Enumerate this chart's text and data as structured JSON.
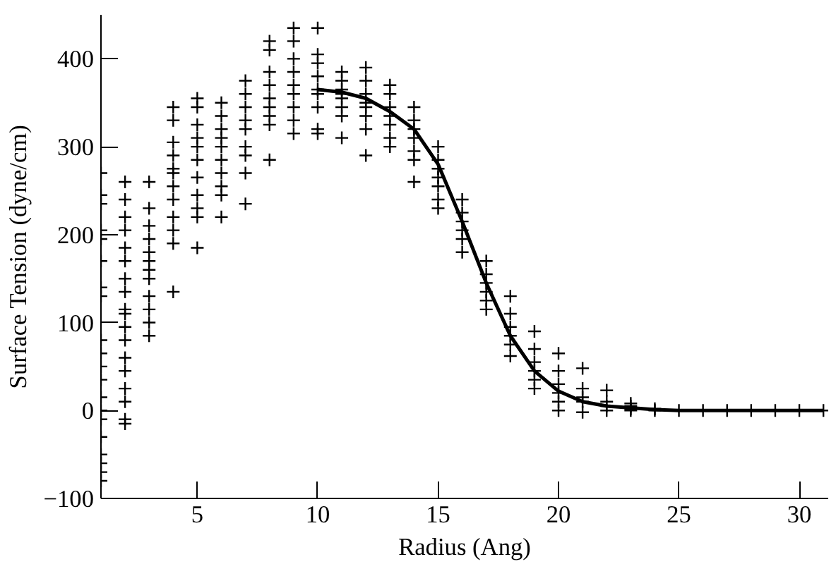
{
  "chart_data": {
    "type": "scatter",
    "xlabel": "Radius (Ang)",
    "ylabel": "Surface Tension (dyne/cm)",
    "xlim": [
      1,
      31.2
    ],
    "ylim": [
      -100,
      450
    ],
    "xticks": [
      5,
      10,
      15,
      20,
      25,
      30
    ],
    "yticks": [
      -100,
      0,
      100,
      200,
      300,
      400
    ],
    "grid": false,
    "series": [
      {
        "color": "#000000",
        "marker": "cross",
        "x": [
          1,
          1,
          1,
          1,
          1,
          1,
          1,
          1,
          1,
          1,
          1,
          1,
          1,
          1,
          1,
          1,
          1,
          1,
          1,
          1,
          2,
          2,
          2,
          2,
          2,
          2,
          2,
          2,
          2,
          2,
          2,
          2,
          2,
          2,
          2,
          2,
          2,
          2,
          3,
          3,
          3,
          3,
          3,
          3,
          3,
          3,
          3,
          3,
          3,
          3,
          4,
          4,
          4,
          4,
          4,
          4,
          4,
          4,
          4,
          4,
          4,
          4,
          5,
          5,
          5,
          5,
          5,
          5,
          5,
          5,
          5,
          5,
          5,
          6,
          6,
          6,
          6,
          6,
          6,
          6,
          6,
          6,
          6,
          7,
          7,
          7,
          7,
          7,
          7,
          7,
          7,
          7,
          8,
          8,
          8,
          8,
          8,
          8,
          8,
          8,
          8,
          9,
          9,
          9,
          9,
          9,
          9,
          9,
          9,
          9,
          10,
          10,
          10,
          10,
          10,
          10,
          10,
          10,
          10,
          11,
          11,
          11,
          11,
          11,
          11,
          11,
          11,
          12,
          12,
          12,
          12,
          12,
          12,
          12,
          12,
          13,
          13,
          13,
          13,
          13,
          13,
          13,
          14,
          14,
          14,
          14,
          14,
          14,
          14,
          15,
          15,
          15,
          15,
          15,
          15,
          15,
          16,
          16,
          16,
          16,
          16,
          16,
          17,
          17,
          17,
          17,
          17,
          17,
          18,
          18,
          18,
          18,
          18,
          18,
          19,
          19,
          19,
          19,
          19,
          19,
          20,
          20,
          20,
          20,
          20,
          20,
          21,
          21,
          21,
          21,
          21,
          22,
          22,
          22,
          22,
          23,
          23,
          23,
          23,
          24,
          24,
          25,
          26,
          27,
          28,
          29,
          30,
          31
        ],
        "values": [
          270,
          245,
          235,
          205,
          195,
          170,
          140,
          130,
          80,
          65,
          50,
          35,
          15,
          0,
          -10,
          -30,
          -50,
          -60,
          -70,
          -80,
          260,
          240,
          220,
          205,
          185,
          170,
          150,
          135,
          115,
          110,
          95,
          80,
          60,
          45,
          25,
          10,
          -10,
          -15,
          260,
          230,
          210,
          195,
          180,
          170,
          160,
          150,
          130,
          115,
          100,
          85,
          345,
          330,
          305,
          290,
          275,
          270,
          255,
          240,
          220,
          205,
          190,
          135,
          355,
          345,
          325,
          310,
          300,
          285,
          265,
          245,
          230,
          220,
          185,
          350,
          335,
          320,
          310,
          300,
          285,
          270,
          255,
          245,
          220,
          375,
          360,
          345,
          330,
          320,
          300,
          290,
          270,
          235,
          420,
          410,
          385,
          370,
          355,
          345,
          335,
          325,
          285,
          435,
          420,
          400,
          385,
          370,
          360,
          345,
          330,
          315,
          435,
          405,
          395,
          380,
          365,
          360,
          345,
          320,
          315,
          385,
          375,
          365,
          360,
          355,
          345,
          335,
          310,
          390,
          375,
          360,
          350,
          345,
          335,
          320,
          290,
          370,
          360,
          345,
          335,
          325,
          310,
          300,
          345,
          330,
          320,
          310,
          295,
          285,
          260,
          300,
          285,
          275,
          265,
          255,
          240,
          230,
          240,
          225,
          215,
          205,
          195,
          180,
          170,
          155,
          145,
          135,
          125,
          115,
          130,
          110,
          95,
          85,
          75,
          62,
          90,
          70,
          55,
          45,
          35,
          25,
          65,
          45,
          30,
          20,
          10,
          0,
          48,
          25,
          15,
          10,
          -2,
          23,
          10,
          5,
          0,
          8,
          5,
          2,
          0,
          2,
          0,
          0,
          0,
          0,
          0,
          0,
          0,
          0
        ]
      },
      {
        "type": "line",
        "color": "#000000",
        "line_style": "solid",
        "x": [
          10,
          11,
          12,
          13,
          14,
          15,
          16,
          17,
          18,
          19,
          20,
          21,
          22,
          23,
          24,
          25,
          26,
          27,
          28,
          29,
          30,
          31
        ],
        "values": [
          365,
          362,
          355,
          340,
          320,
          280,
          215,
          145,
          85,
          45,
          22,
          10,
          5,
          3,
          1,
          0,
          0,
          0,
          0,
          0,
          0,
          0
        ]
      }
    ]
  }
}
